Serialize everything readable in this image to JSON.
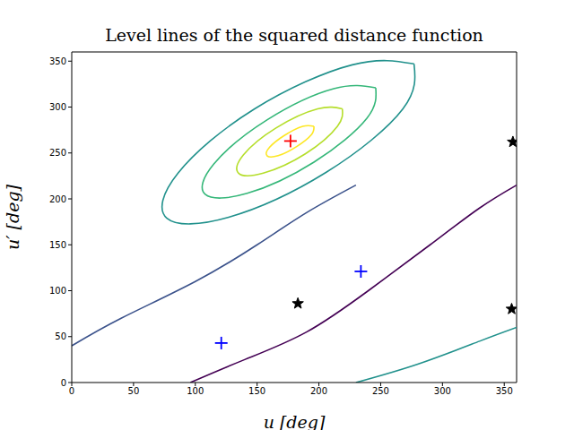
{
  "chart_data": {
    "type": "contour",
    "title": "Level lines of the squared distance function",
    "x_label": "u [deg]",
    "y_label": "u′ [deg]",
    "xlim": [
      0,
      360
    ],
    "ylim": [
      0,
      360
    ],
    "xticks": [
      0,
      50,
      100,
      150,
      200,
      250,
      300,
      350
    ],
    "yticks": [
      0,
      50,
      100,
      150,
      200,
      250,
      300,
      350
    ],
    "grid": false,
    "series": [
      {
        "type": "line",
        "color": "#fde725",
        "x": [
          196,
          187,
          172,
          160,
          158,
          167,
          182,
          194,
          196
        ],
        "values": [
          279,
          279,
          269,
          256,
          247,
          247,
          257,
          270,
          279
        ]
      },
      {
        "type": "line",
        "color": "#b5de2b",
        "x": [
          219,
          199,
          165,
          139,
          135,
          155,
          189,
          215,
          219
        ],
        "values": [
          298,
          298,
          277,
          248,
          228,
          228,
          249,
          279,
          298
        ]
      },
      {
        "type": "line",
        "color": "#35b779",
        "x": [
          246,
          212,
          158,
          115,
          108,
          142,
          196,
          239,
          246
        ],
        "values": [
          321,
          320,
          286,
          238,
          205,
          206,
          240,
          288,
          321
        ]
      },
      {
        "type": "line",
        "color": "#21918c",
        "x": [
          277,
          227,
          148,
          86,
          77,
          127,
          206,
          268,
          277
        ],
        "values": [
          347,
          346,
          298,
          228,
          179,
          180,
          229,
          298,
          347
        ]
      },
      {
        "type": "line",
        "color": "#440154",
        "x": [
          96,
          140,
          190,
          240,
          290,
          330,
          360
        ],
        "values": [
          0,
          25,
          55,
          100,
          150,
          190,
          215
        ]
      },
      {
        "type": "line",
        "color": "#3b528b",
        "x": [
          0,
          40,
          100,
          150,
          190,
          230
        ],
        "values": [
          40,
          70,
          110,
          150,
          185,
          215
        ]
      },
      {
        "type": "line",
        "color": "#21918c",
        "x": [
          230,
          280,
          330,
          360
        ],
        "values": [
          0,
          20,
          45,
          60
        ]
      }
    ],
    "points": [
      {
        "x": 177,
        "y": 263,
        "color": "#ff0000",
        "marker": "plus"
      },
      {
        "x": 121,
        "y": 43,
        "color": "#0000ff",
        "marker": "plus"
      },
      {
        "x": 234,
        "y": 121,
        "color": "#0000ff",
        "marker": "plus"
      },
      {
        "x": 183,
        "y": 86,
        "color": "#000000",
        "marker": "star"
      },
      {
        "x": 357,
        "y": 262,
        "color": "#000000",
        "marker": "star"
      },
      {
        "x": 356,
        "y": 80,
        "color": "#000000",
        "marker": "star"
      }
    ]
  }
}
